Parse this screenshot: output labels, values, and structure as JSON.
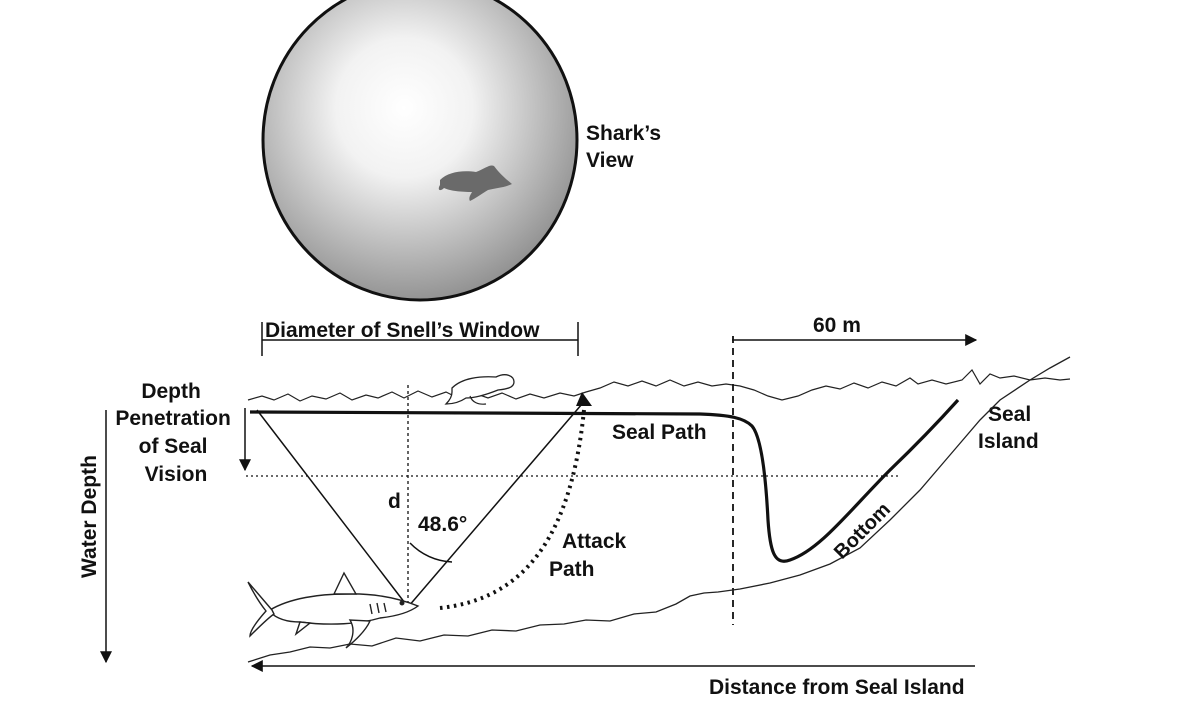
{
  "labels": {
    "sharks_view": [
      "Shark’s",
      "View"
    ],
    "snells_window": "Diameter of Snell’s Window",
    "distance_60m": "60 m",
    "depth_penetration": [
      "Depth",
      "Penetration",
      "of Seal",
      "Vision"
    ],
    "water_depth": "Water Depth",
    "d": "d",
    "angle": "48.6°",
    "attack_path": [
      "Attack",
      "Path"
    ],
    "seal_path": "Seal  Path",
    "seal_island": [
      "Seal",
      "Island"
    ],
    "bottom": "Bottom",
    "distance_from_island": "Distance from Seal Island"
  },
  "icons": {
    "seal_silhouette": "seal-silhouette-icon",
    "seal_surface": "seal-icon",
    "shark": "shark-icon"
  },
  "colors": {
    "ink": "#111111",
    "window_center": "#ffffff",
    "window_edge": "#8f8f8f"
  }
}
